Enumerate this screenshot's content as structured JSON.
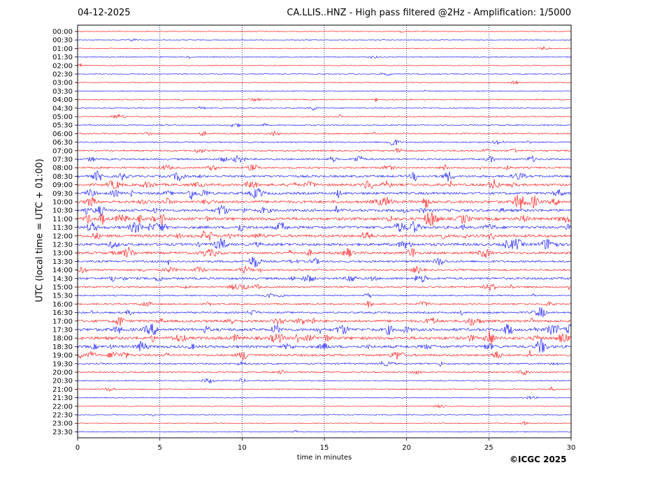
{
  "chart_data": {
    "type": "line",
    "date": "04-12-2025",
    "title": "CA.LLIS..HNZ - High pass filtered @2Hz - Amplification: 1/5000",
    "xlabel": "time in minutes",
    "ylabel": "UTC (local time = UTC + 01:00)",
    "copyright": "©ICGC 2025",
    "xlim": [
      0,
      30
    ],
    "x_ticks": [
      0,
      5,
      10,
      15,
      20,
      25,
      30
    ],
    "vertical_grid_minutes": [
      5,
      10,
      15,
      20,
      25
    ],
    "y_tick_labels": [
      "00:00",
      "00:30",
      "01:00",
      "01:30",
      "02:00",
      "02:30",
      "03:00",
      "03:30",
      "04:00",
      "04:30",
      "05:00",
      "05:30",
      "06:00",
      "06:30",
      "07:00",
      "07:30",
      "08:00",
      "08:30",
      "09:00",
      "09:30",
      "10:00",
      "10:30",
      "11:00",
      "11:30",
      "12:00",
      "12:30",
      "13:00",
      "13:30",
      "14:00",
      "14:30",
      "15:00",
      "15:30",
      "16:00",
      "16:30",
      "17:00",
      "17:30",
      "18:00",
      "18:30",
      "19:00",
      "19:30",
      "20:00",
      "20:30",
      "21:00",
      "21:30",
      "22:00",
      "22:30",
      "23:00",
      "23:30"
    ],
    "trace_colors": [
      "#ff0000",
      "#0000ff"
    ],
    "grid_color": "#000080",
    "activity_levels": [
      0.1,
      0.1,
      0.1,
      0.15,
      0.1,
      0.1,
      0.1,
      0.1,
      0.2,
      0.2,
      0.2,
      0.2,
      0.3,
      0.3,
      0.4,
      0.5,
      0.5,
      0.7,
      0.8,
      0.8,
      0.9,
      0.9,
      1.0,
      0.9,
      0.9,
      0.9,
      0.8,
      0.6,
      0.5,
      0.7,
      0.5,
      0.3,
      0.4,
      0.5,
      0.8,
      1.0,
      1.0,
      0.9,
      0.7,
      0.4,
      0.3,
      0.2,
      0.2,
      0.1,
      0.1,
      0.1,
      0.1,
      0.1
    ]
  }
}
